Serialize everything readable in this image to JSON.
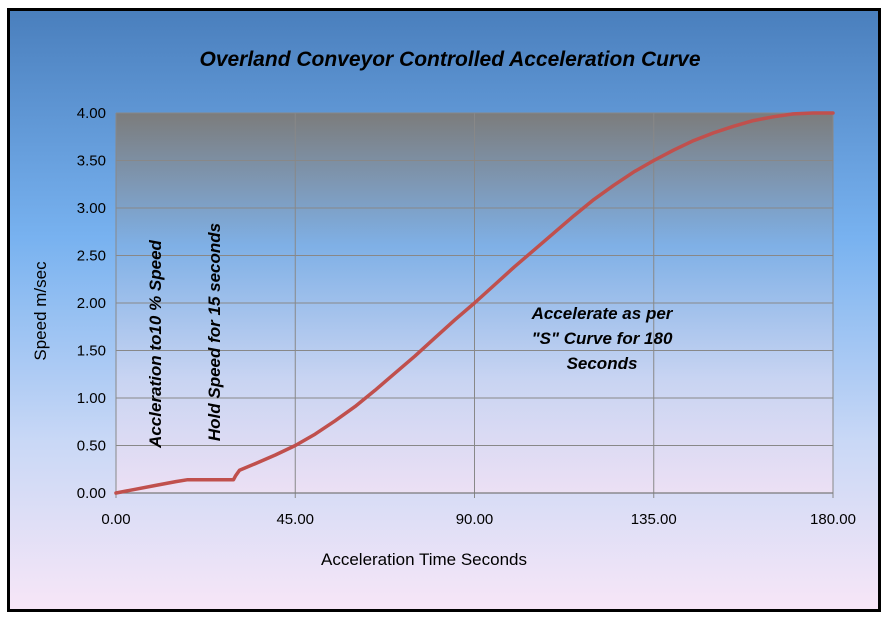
{
  "chart_data": {
    "type": "line",
    "title": "Overland Conveyor Controlled Acceleration Curve",
    "xlabel": "Acceleration Time Seconds",
    "ylabel": "Speed m/sec",
    "xlim": [
      0,
      180
    ],
    "ylim": [
      0,
      4
    ],
    "x_ticks": [
      "0.00",
      "45.00",
      "90.00",
      "135.00",
      "180.00"
    ],
    "y_ticks": [
      "0.00",
      "0.50",
      "1.00",
      "1.50",
      "2.00",
      "2.50",
      "3.00",
      "3.50",
      "4.00"
    ],
    "grid": true,
    "legend": "none",
    "series": [
      {
        "color": "#c0504d",
        "x": [
          0,
          5,
          10,
          15,
          18,
          22,
          26,
          29.5,
          30,
          31,
          35,
          40,
          45,
          50,
          55,
          60,
          65,
          70,
          75,
          80,
          85,
          90,
          95,
          100,
          105,
          110,
          115,
          120,
          125,
          130,
          135,
          140,
          145,
          150,
          155,
          160,
          165,
          170,
          175,
          180
        ],
        "y": [
          0,
          0.04,
          0.08,
          0.12,
          0.14,
          0.14,
          0.14,
          0.14,
          0.18,
          0.24,
          0.31,
          0.4,
          0.5,
          0.62,
          0.76,
          0.91,
          1.08,
          1.26,
          1.44,
          1.63,
          1.82,
          2.0,
          2.19,
          2.38,
          2.56,
          2.74,
          2.92,
          3.09,
          3.24,
          3.38,
          3.5,
          3.61,
          3.71,
          3.79,
          3.86,
          3.92,
          3.96,
          3.99,
          4.0,
          4.0
        ]
      }
    ],
    "annotations": [
      {
        "text": "Accleration to10  % Speed",
        "rotation": -90
      },
      {
        "text": "Hold  Speed for 15 seconds",
        "rotation": -90
      },
      {
        "lines": [
          "Accelerate as per",
          "\"S\" Curve for  180",
          "Seconds"
        ]
      }
    ],
    "colors": {
      "plot_background_top": "#7c7c7c",
      "plot_background_bottom": "#e8e0f2",
      "line": "#c0504d",
      "grid": "#888888"
    }
  }
}
